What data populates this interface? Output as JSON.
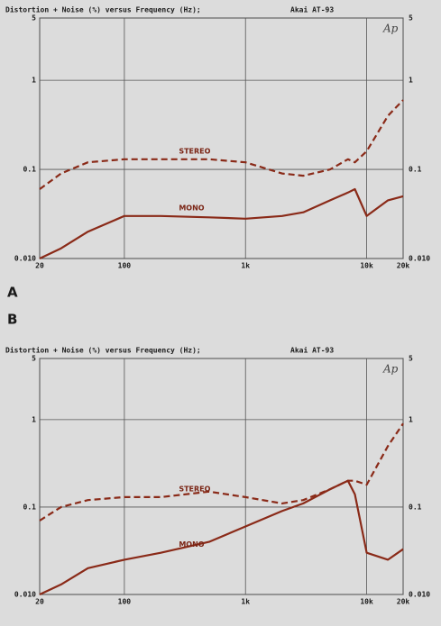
{
  "chart_data": [
    {
      "type": "line",
      "panel_label": "A",
      "title": "Distortion + Noise (%) versus Frequency (Hz);",
      "subtitle": "Akai AT-93",
      "logo": "Ap",
      "x": [
        20,
        30,
        50,
        100,
        200,
        500,
        1000,
        2000,
        3000,
        5000,
        7000,
        8000,
        10000,
        15000,
        20000
      ],
      "series": [
        {
          "name": "STEREO",
          "color": "#8a2a18",
          "dash": true,
          "values": [
            0.06,
            0.09,
            0.12,
            0.13,
            0.13,
            0.13,
            0.12,
            0.09,
            0.085,
            0.1,
            0.13,
            0.12,
            0.16,
            0.4,
            0.6
          ]
        },
        {
          "name": "MONO",
          "color": "#8a2a18",
          "dash": false,
          "values": [
            0.01,
            0.013,
            0.02,
            0.03,
            0.03,
            0.029,
            0.028,
            0.03,
            0.033,
            0.045,
            0.055,
            0.06,
            0.03,
            0.045,
            0.05
          ]
        }
      ],
      "xlim": [
        20,
        20000
      ],
      "xticks": [
        20,
        100,
        {
          "value": 1000,
          "label": "1k"
        },
        {
          "value": 10000,
          "label": "10k"
        },
        {
          "value": 20000,
          "label": "20k"
        }
      ],
      "ylim": [
        0.01,
        5
      ],
      "yticks": [
        5,
        1,
        0.1,
        {
          "value": 0.01,
          "label": "0.010"
        }
      ],
      "log_x": true,
      "log_y": true,
      "grid": true
    },
    {
      "type": "line",
      "panel_label": "B",
      "title": "Distortion + Noise (%) versus Frequency (Hz);",
      "subtitle": "Akai AT-93",
      "logo": "Ap",
      "x": [
        20,
        30,
        50,
        100,
        200,
        500,
        1000,
        2000,
        3000,
        5000,
        7000,
        8000,
        10000,
        15000,
        20000
      ],
      "series": [
        {
          "name": "STEREO",
          "color": "#8a2a18",
          "dash": true,
          "values": [
            0.07,
            0.1,
            0.12,
            0.13,
            0.13,
            0.15,
            0.13,
            0.11,
            0.12,
            0.16,
            0.2,
            0.2,
            0.18,
            0.5,
            0.9
          ]
        },
        {
          "name": "MONO",
          "color": "#8a2a18",
          "dash": false,
          "values": [
            0.01,
            0.013,
            0.02,
            0.025,
            0.03,
            0.04,
            0.06,
            0.09,
            0.11,
            0.16,
            0.2,
            0.14,
            0.03,
            0.025,
            0.033
          ]
        }
      ],
      "xlim": [
        20,
        20000
      ],
      "xticks": [
        20,
        100,
        {
          "value": 1000,
          "label": "1k"
        },
        {
          "value": 10000,
          "label": "10k"
        },
        {
          "value": 20000,
          "label": "20k"
        }
      ],
      "ylim": [
        0.01,
        5
      ],
      "yticks": [
        5,
        1,
        0.1,
        {
          "value": 0.01,
          "label": "0.010"
        }
      ],
      "log_x": true,
      "log_y": true,
      "grid": true
    }
  ]
}
